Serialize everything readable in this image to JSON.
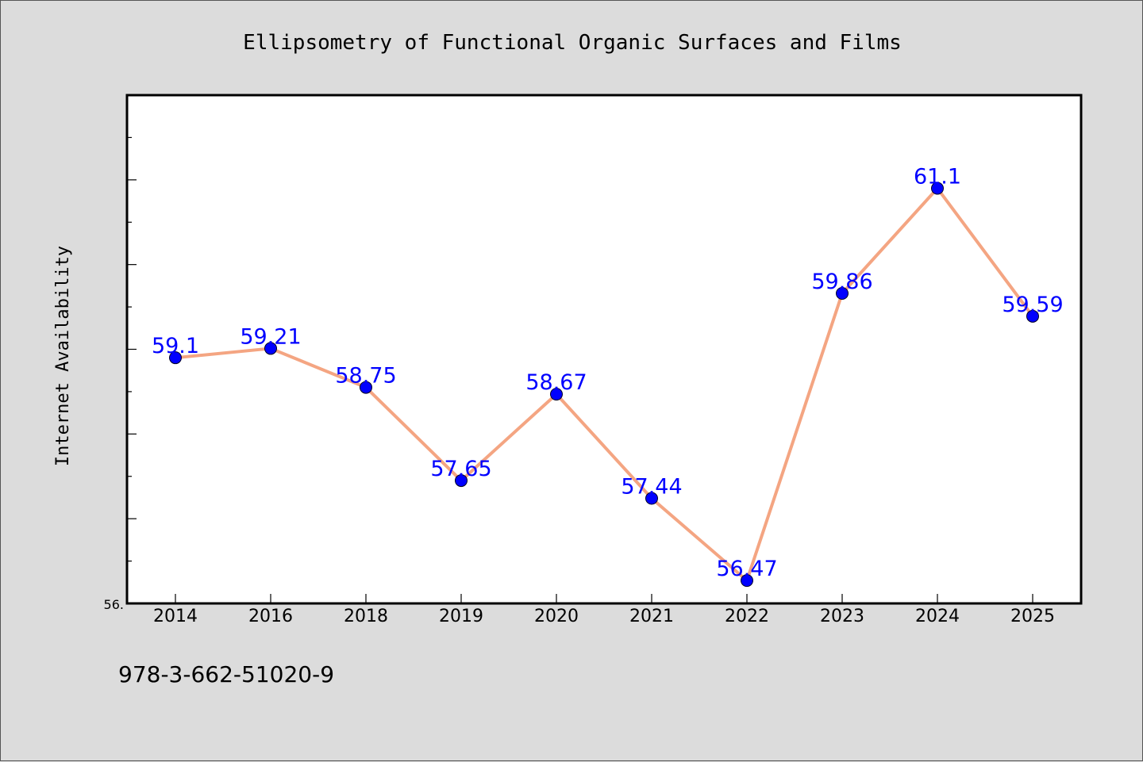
{
  "footer_text": "978-3-662-51020-9",
  "chart_data": {
    "type": "line",
    "title": "Ellipsometry of Functional Organic Surfaces and Films",
    "xlabel": "",
    "ylabel": "Internet Availability",
    "categories": [
      "2014",
      "2016",
      "2018",
      "2019",
      "2020",
      "2021",
      "2022",
      "2023",
      "2024",
      "2025"
    ],
    "series": [
      {
        "values": [
          59.1,
          59.21,
          58.75,
          57.65,
          58.67,
          57.44,
          56.47,
          59.86,
          61.1,
          59.59
        ],
        "data_labels": [
          "59.1",
          "59.21",
          "58.75",
          "57.65",
          "58.67",
          "57.44",
          "56.47",
          "59.86",
          "61.1",
          "59.59"
        ],
        "line_color": "#f4a582",
        "marker_color": "#0000ff"
      }
    ],
    "ylim": [
      56.2,
      62.2
    ],
    "y_tick_label": "56.",
    "grid": false,
    "legend": false,
    "colors": {
      "line": "#f4a582",
      "marker": "#0000ff",
      "label": "#0000ff",
      "plot_background": "#ffffff",
      "figure_background": "#dcdcdc"
    }
  }
}
